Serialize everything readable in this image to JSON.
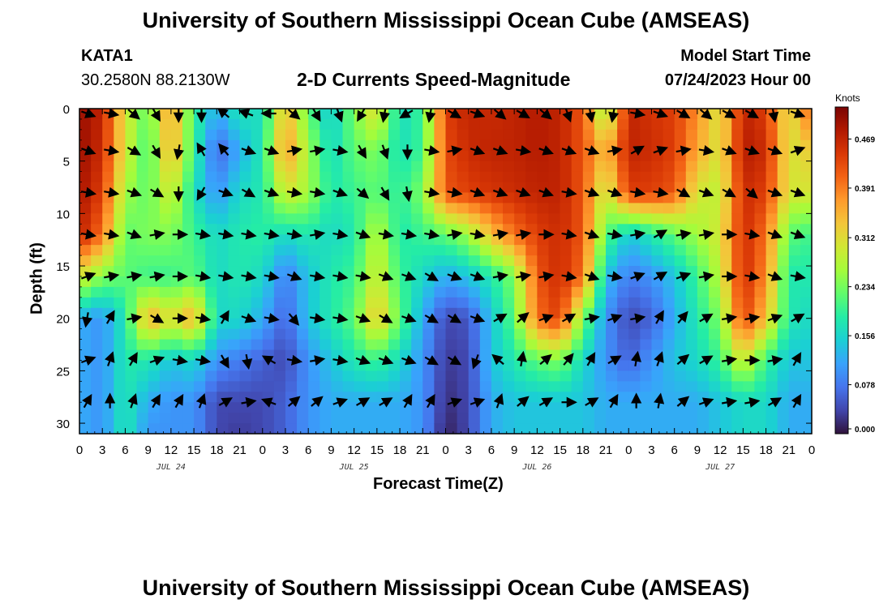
{
  "header": {
    "title": "University of Southern Mississippi Ocean Cube (AMSEAS)",
    "station": "KATA1",
    "coords": "30.2580N  88.2130W",
    "chart_title": "2-D Currents Speed-Magnitude",
    "model_start_label": "Model Start Time",
    "model_start_value": "07/24/2023 Hour 00"
  },
  "footer": {
    "title": "University of Southern Mississippi Ocean Cube (AMSEAS)"
  },
  "chart_data": {
    "type": "heatmap",
    "title": "2-D Currents Speed-Magnitude",
    "xlabel": "Forecast Time(Z)",
    "ylabel": "Depth (ft)",
    "xlim": [
      0,
      96
    ],
    "ylim": [
      31,
      0
    ],
    "x_tick_labels": [
      "0",
      "3",
      "6",
      "9",
      "12",
      "15",
      "18",
      "21",
      "0",
      "3",
      "6",
      "9",
      "12",
      "15",
      "18",
      "21",
      "0",
      "3",
      "6",
      "9",
      "12",
      "15",
      "18",
      "21",
      "0",
      "3",
      "6",
      "9",
      "12",
      "15",
      "18",
      "21",
      "0"
    ],
    "y_ticks": [
      0,
      5,
      10,
      15,
      20,
      25,
      30
    ],
    "y_tick_labels": [
      "0",
      "5",
      "10",
      "15",
      "20",
      "25",
      "30"
    ],
    "date_labels": [
      {
        "text": "JUL 24",
        "hour": 12
      },
      {
        "text": "JUL 25",
        "hour": 36
      },
      {
        "text": "JUL 26",
        "hour": 60
      },
      {
        "text": "JUL 27",
        "hour": 84
      }
    ],
    "colorbar": {
      "unit": "Knots",
      "range": [
        0.0,
        0.52
      ],
      "ticks": [
        0.0,
        0.078,
        0.156,
        0.234,
        0.312,
        0.391,
        0.469
      ],
      "tick_labels": [
        "0.000",
        "0.078",
        "0.156",
        "0.234",
        "0.312",
        "0.391",
        "0.469"
      ]
    },
    "colormap": [
      "#30123b",
      "#4145ab",
      "#4675ed",
      "#39a2fc",
      "#1bcfd4",
      "#24eca6",
      "#61fc6c",
      "#a4fc3b",
      "#d1e834",
      "#f3c63a",
      "#fe9b2d",
      "#f36315",
      "#d93806",
      "#b11901",
      "#7a0403"
    ],
    "depths": [
      0,
      4,
      8,
      12,
      16,
      20,
      24,
      28,
      31
    ],
    "speed_times": [
      0,
      3,
      6,
      9,
      12,
      15,
      18,
      21,
      24,
      27,
      30,
      33,
      36,
      39,
      42,
      45,
      48,
      51,
      54,
      57,
      60,
      63,
      66,
      69,
      72,
      75,
      78,
      81,
      84,
      87,
      90,
      93,
      96
    ],
    "speed": [
      [
        0.5,
        0.47,
        0.3,
        0.22,
        0.38,
        0.2,
        0.12,
        0.18,
        0.16,
        0.35,
        0.22,
        0.14,
        0.24,
        0.32,
        0.16,
        0.2,
        0.44,
        0.47,
        0.46,
        0.47,
        0.48,
        0.47,
        0.42,
        0.24,
        0.47,
        0.45,
        0.44,
        0.38,
        0.3,
        0.47,
        0.44,
        0.3,
        0.42
      ],
      [
        0.5,
        0.46,
        0.3,
        0.2,
        0.36,
        0.2,
        0.06,
        0.12,
        0.18,
        0.38,
        0.26,
        0.16,
        0.22,
        0.24,
        0.17,
        0.2,
        0.43,
        0.46,
        0.47,
        0.47,
        0.48,
        0.47,
        0.42,
        0.34,
        0.47,
        0.46,
        0.44,
        0.36,
        0.3,
        0.48,
        0.46,
        0.3,
        0.33
      ],
      [
        0.49,
        0.44,
        0.26,
        0.22,
        0.3,
        0.17,
        0.1,
        0.16,
        0.18,
        0.3,
        0.26,
        0.18,
        0.2,
        0.22,
        0.19,
        0.24,
        0.42,
        0.44,
        0.45,
        0.46,
        0.47,
        0.47,
        0.42,
        0.28,
        0.44,
        0.44,
        0.42,
        0.3,
        0.28,
        0.46,
        0.44,
        0.3,
        0.3
      ],
      [
        0.47,
        0.4,
        0.22,
        0.24,
        0.24,
        0.2,
        0.16,
        0.18,
        0.19,
        0.16,
        0.18,
        0.16,
        0.18,
        0.28,
        0.18,
        0.2,
        0.22,
        0.26,
        0.34,
        0.4,
        0.44,
        0.46,
        0.42,
        0.22,
        0.14,
        0.18,
        0.22,
        0.26,
        0.3,
        0.46,
        0.4,
        0.22,
        0.2
      ],
      [
        0.3,
        0.24,
        0.22,
        0.2,
        0.2,
        0.22,
        0.16,
        0.18,
        0.16,
        0.08,
        0.14,
        0.18,
        0.2,
        0.3,
        0.2,
        0.16,
        0.12,
        0.14,
        0.18,
        0.24,
        0.42,
        0.46,
        0.4,
        0.14,
        0.08,
        0.1,
        0.14,
        0.2,
        0.28,
        0.46,
        0.38,
        0.18,
        0.18
      ],
      [
        0.12,
        0.1,
        0.18,
        0.36,
        0.3,
        0.36,
        0.16,
        0.16,
        0.12,
        0.06,
        0.14,
        0.18,
        0.22,
        0.34,
        0.22,
        0.12,
        0.04,
        0.05,
        0.14,
        0.22,
        0.4,
        0.44,
        0.24,
        0.1,
        0.04,
        0.06,
        0.12,
        0.18,
        0.24,
        0.44,
        0.34,
        0.18,
        0.16
      ],
      [
        0.12,
        0.1,
        0.18,
        0.18,
        0.14,
        0.16,
        0.1,
        0.08,
        0.06,
        0.04,
        0.1,
        0.14,
        0.18,
        0.2,
        0.16,
        0.1,
        0.03,
        0.04,
        0.14,
        0.18,
        0.22,
        0.24,
        0.16,
        0.1,
        0.06,
        0.1,
        0.14,
        0.16,
        0.2,
        0.3,
        0.2,
        0.14,
        0.14
      ],
      [
        0.12,
        0.1,
        0.18,
        0.12,
        0.1,
        0.1,
        0.04,
        0.04,
        0.04,
        0.06,
        0.1,
        0.12,
        0.12,
        0.12,
        0.12,
        0.1,
        0.02,
        0.04,
        0.12,
        0.14,
        0.14,
        0.14,
        0.14,
        0.12,
        0.12,
        0.12,
        0.12,
        0.12,
        0.14,
        0.16,
        0.16,
        0.12,
        0.12
      ],
      [
        0.12,
        0.1,
        0.18,
        0.1,
        0.1,
        0.1,
        0.04,
        0.03,
        0.04,
        0.06,
        0.1,
        0.12,
        0.12,
        0.12,
        0.12,
        0.1,
        0.01,
        0.04,
        0.12,
        0.14,
        0.14,
        0.14,
        0.14,
        0.12,
        0.12,
        0.12,
        0.12,
        0.12,
        0.14,
        0.16,
        0.16,
        0.12,
        0.12
      ]
    ],
    "vector_times": [
      1,
      4,
      7,
      10,
      13,
      16,
      19,
      22,
      25,
      28,
      31,
      34,
      37,
      40,
      43,
      46,
      49,
      52,
      55,
      58,
      61,
      64,
      67,
      70,
      73,
      76,
      79,
      82,
      85,
      88,
      91,
      94
    ],
    "vector_depths": [
      0,
      4,
      8,
      12,
      16,
      20,
      24,
      28
    ],
    "vector_angles_deg": [
      [
        20,
        10,
        40,
        60,
        90,
        90,
        220,
        200,
        180,
        40,
        60,
        70,
        120,
        100,
        150,
        100,
        30,
        20,
        40,
        30,
        40,
        70,
        80,
        100,
        10,
        20,
        30,
        40,
        30,
        30,
        80,
        20
      ],
      [
        20,
        10,
        30,
        60,
        100,
        240,
        230,
        20,
        20,
        -10,
        -10,
        10,
        60,
        70,
        90,
        10,
        -10,
        20,
        20,
        10,
        20,
        20,
        20,
        -10,
        -30,
        -20,
        -10,
        10,
        20,
        20,
        20,
        -20
      ],
      [
        10,
        10,
        20,
        30,
        90,
        120,
        20,
        30,
        20,
        10,
        10,
        20,
        40,
        60,
        80,
        10,
        10,
        20,
        20,
        20,
        20,
        10,
        20,
        20,
        10,
        10,
        30,
        20,
        30,
        40,
        20,
        20
      ],
      [
        10,
        10,
        20,
        -10,
        0,
        10,
        10,
        10,
        10,
        10,
        -10,
        10,
        20,
        10,
        10,
        10,
        -10,
        10,
        -10,
        -10,
        0,
        10,
        20,
        10,
        -10,
        -30,
        -10,
        -10,
        0,
        10,
        20,
        20
      ],
      [
        -20,
        -10,
        -10,
        -10,
        0,
        10,
        10,
        10,
        10,
        20,
        10,
        10,
        10,
        20,
        20,
        30,
        20,
        20,
        -10,
        -10,
        -10,
        10,
        20,
        10,
        -20,
        -30,
        -20,
        -10,
        0,
        10,
        20,
        10
      ],
      [
        100,
        -60,
        -10,
        30,
        0,
        10,
        -60,
        20,
        10,
        50,
        10,
        10,
        20,
        30,
        20,
        30,
        30,
        20,
        -30,
        -40,
        -20,
        -30,
        -10,
        -20,
        -10,
        -60,
        -50,
        -30,
        -10,
        -10,
        -20,
        -30
      ],
      [
        -20,
        -70,
        -60,
        -20,
        10,
        10,
        60,
        80,
        -150,
        10,
        -10,
        10,
        20,
        20,
        20,
        30,
        30,
        110,
        -140,
        -80,
        -40,
        -50,
        -60,
        -30,
        -80,
        -70,
        -40,
        -30,
        -10,
        0,
        -10,
        -60
      ],
      [
        -60,
        -90,
        -70,
        -60,
        -60,
        -70,
        -30,
        -10,
        -160,
        -40,
        -40,
        -20,
        -30,
        -30,
        -60,
        -60,
        -20,
        -20,
        -70,
        -40,
        -30,
        0,
        -30,
        -60,
        -90,
        -80,
        -40,
        -20,
        -10,
        -10,
        -30,
        -60
      ]
    ]
  }
}
